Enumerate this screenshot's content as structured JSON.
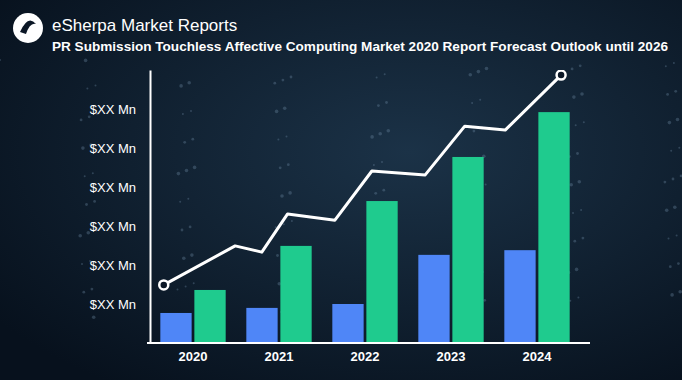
{
  "chart_data": {
    "type": "bar",
    "title": "PR Submission Touchless Affective Computing Market 2020 Report Forecast Outlook until 2026",
    "annotations": [
      "eSherpa Market Reports"
    ],
    "categories": [
      "2020",
      "2021",
      "2022",
      "2023",
      "2024"
    ],
    "series": [
      {
        "color": "#4f86f7",
        "values": [
          0.77,
          0.9,
          1.0,
          2.26,
          2.38
        ]
      },
      {
        "color": "#1fcb8e",
        "values": [
          1.36,
          2.49,
          3.64,
          4.77,
          5.92
        ]
      },
      {
        "type": "line",
        "color": "#ffffff",
        "marker": "endpoints",
        "x": [
          -0.34,
          0.49,
          0.8,
          1.1,
          1.65,
          2.08,
          2.7,
          3.16,
          3.63,
          4.28
        ],
        "values": [
          1.49,
          2.49,
          2.33,
          3.31,
          3.15,
          4.41,
          4.31,
          5.56,
          5.46,
          6.87
        ]
      }
    ],
    "ylim": [
      0,
      7
    ],
    "yticks": [
      {
        "value": 1,
        "label": "$XX Mn"
      },
      {
        "value": 2,
        "label": "$XX Mn"
      },
      {
        "value": 3,
        "label": "$XX Mn"
      },
      {
        "value": 4,
        "label": "$XX Mn"
      },
      {
        "value": 5,
        "label": "$XX Mn"
      },
      {
        "value": 6,
        "label": "$XX Mn"
      }
    ],
    "grid": false
  }
}
